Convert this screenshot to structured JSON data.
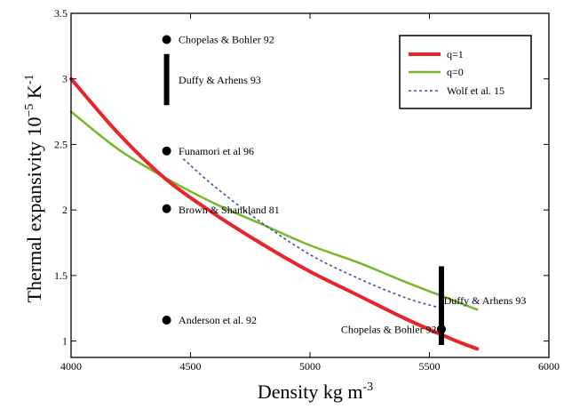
{
  "chart_data": {
    "type": "line",
    "xlabel": "Density kg m",
    "xlabel_sup": "-3",
    "ylabel": "Thermal expansivity 10",
    "ylabel_sup1": "−5",
    "ylabel_mid": " K",
    "ylabel_sup2": "-1",
    "xlim": [
      4000,
      6000
    ],
    "ylim": [
      0.875,
      3.5
    ],
    "x_ticks": [
      4000,
      4500,
      5000,
      5500,
      6000
    ],
    "y_ticks": [
      1,
      1.5,
      2,
      2.5,
      3,
      3.5
    ],
    "grid": false,
    "legend_position": "top-right",
    "series": [
      {
        "name": "q=1",
        "color": "#e8262a",
        "style": "solid",
        "points": [
          [
            4000,
            3.0
          ],
          [
            4200,
            2.58
          ],
          [
            4400,
            2.23
          ],
          [
            4600,
            1.97
          ],
          [
            4800,
            1.74
          ],
          [
            5000,
            1.53
          ],
          [
            5200,
            1.35
          ],
          [
            5400,
            1.17
          ],
          [
            5600,
            1.01
          ],
          [
            5700,
            0.94
          ]
        ]
      },
      {
        "name": "q=0",
        "color": "#76b82a",
        "style": "solid",
        "points": [
          [
            4000,
            2.75
          ],
          [
            4200,
            2.46
          ],
          [
            4400,
            2.24
          ],
          [
            4600,
            2.05
          ],
          [
            4800,
            1.89
          ],
          [
            5000,
            1.73
          ],
          [
            5200,
            1.6
          ],
          [
            5400,
            1.45
          ],
          [
            5600,
            1.31
          ],
          [
            5700,
            1.24
          ]
        ]
      },
      {
        "name": "Wolf et al. 15",
        "color": "#3a52a3",
        "style": "dashed",
        "points": [
          [
            4470,
            2.39
          ],
          [
            4600,
            2.18
          ],
          [
            4800,
            1.9
          ],
          [
            5000,
            1.66
          ],
          [
            5200,
            1.48
          ],
          [
            5400,
            1.33
          ],
          [
            5550,
            1.25
          ]
        ]
      }
    ],
    "point_markers": [
      {
        "x": 4400,
        "y": 3.3
      },
      {
        "x": 4400,
        "y": 2.45
      },
      {
        "x": 4400,
        "y": 2.01
      },
      {
        "x": 4400,
        "y": 1.16
      },
      {
        "x": 5550,
        "y": 1.09
      }
    ],
    "error_bars": [
      {
        "x": 4400,
        "y_low": 2.8,
        "y_high": 3.19
      },
      {
        "x": 5550,
        "y_low": 0.97,
        "y_high": 1.57
      }
    ],
    "annotations": [
      {
        "text": "Chopelas & Bohler 92",
        "x": 4450,
        "y": 3.3,
        "anchor": "start"
      },
      {
        "text": "Duffy & Arhens 93",
        "x": 4450,
        "y": 2.99,
        "anchor": "start"
      },
      {
        "text": "Funamori et al 96",
        "x": 4450,
        "y": 2.45,
        "anchor": "start"
      },
      {
        "text": "Brown & Shankland 81",
        "x": 4450,
        "y": 2.0,
        "anchor": "start"
      },
      {
        "text": "Anderson et al. 92",
        "x": 4450,
        "y": 1.16,
        "anchor": "start"
      },
      {
        "text": "Duffy & Arhens 93",
        "x": 5560,
        "y": 1.31,
        "anchor": "start"
      },
      {
        "text": "Chopelas & Bohler 92",
        "x": 5530,
        "y": 1.09,
        "anchor": "end"
      }
    ]
  }
}
